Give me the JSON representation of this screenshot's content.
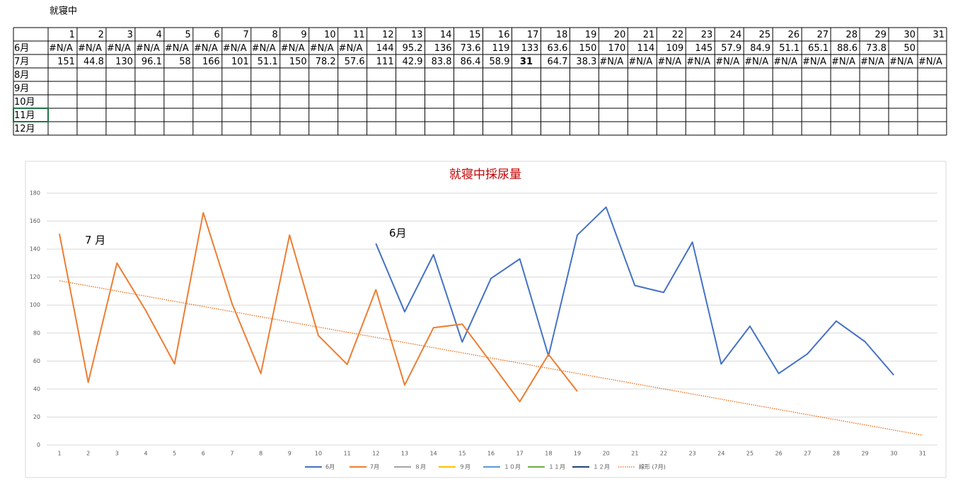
{
  "sheet_label": "就寝中",
  "table": {
    "columns": [
      1,
      2,
      3,
      4,
      5,
      6,
      7,
      8,
      9,
      10,
      11,
      12,
      13,
      14,
      15,
      16,
      17,
      18,
      19,
      20,
      21,
      22,
      23,
      24,
      25,
      26,
      27,
      28,
      29,
      30,
      31
    ],
    "rows": [
      {
        "label": "6月",
        "cells": [
          "#N/A",
          "#N/A",
          "#N/A",
          "#N/A",
          "#N/A",
          "#N/A",
          "#N/A",
          "#N/A",
          "#N/A",
          "#N/A",
          "#N/A",
          144,
          95.2,
          136,
          73.6,
          119,
          133,
          63.6,
          150,
          170,
          114,
          109,
          145,
          57.9,
          84.9,
          51.1,
          65.1,
          88.6,
          73.8,
          50
        ]
      },
      {
        "label": "7月",
        "cells": [
          151,
          44.8,
          130,
          96.1,
          58,
          166,
          101,
          51.1,
          150,
          78.2,
          57.6,
          111,
          42.9,
          83.8,
          86.4,
          58.9,
          31,
          64.7,
          38.3,
          "#N/A",
          "#N/A",
          "#N/A",
          "#N/A",
          "#N/A",
          "#N/A",
          "#N/A",
          "#N/A",
          "#N/A",
          "#N/A",
          "#N/A",
          "#N/A"
        ]
      },
      {
        "label": "8月",
        "cells": []
      },
      {
        "label": "9月",
        "cells": []
      },
      {
        "label": "10月",
        "cells": []
      },
      {
        "label": "11月",
        "cells": []
      },
      {
        "label": "12月",
        "cells": []
      }
    ],
    "emphasis": {
      "row": 1,
      "column": 16,
      "color": "#c00000"
    }
  },
  "chart_data": {
    "type": "line",
    "title": "就寝中採尿量",
    "annotations": [
      "7 月",
      "6月"
    ],
    "categories": [
      1,
      2,
      3,
      4,
      5,
      6,
      7,
      8,
      9,
      10,
      11,
      12,
      13,
      14,
      15,
      16,
      17,
      18,
      19,
      20,
      21,
      22,
      23,
      24,
      25,
      26,
      27,
      28,
      29,
      30,
      31
    ],
    "ylim": [
      0,
      180
    ],
    "yticks": [
      0,
      20,
      40,
      60,
      80,
      100,
      120,
      140,
      160,
      180
    ],
    "grid": true,
    "legend": "bottom",
    "series": [
      {
        "name": "6月",
        "color": "#4472c4",
        "values": [
          null,
          null,
          null,
          null,
          null,
          null,
          null,
          null,
          null,
          null,
          null,
          144,
          95.2,
          136,
          73.6,
          119,
          133,
          63.6,
          150,
          170,
          114,
          109,
          145,
          57.9,
          84.9,
          51.1,
          65.1,
          88.6,
          73.8,
          50,
          null
        ]
      },
      {
        "name": "7月",
        "color": "#ed7d31",
        "values": [
          151,
          44.8,
          130,
          96.1,
          58,
          166,
          101,
          51.1,
          150,
          78.2,
          57.6,
          111,
          42.9,
          83.8,
          86.4,
          58.9,
          31,
          64.7,
          38.3,
          null,
          null,
          null,
          null,
          null,
          null,
          null,
          null,
          null,
          null,
          null,
          null
        ]
      },
      {
        "name": "８月",
        "color": "#a5a5a5",
        "values": [
          null,
          null,
          null,
          null,
          null,
          null,
          null,
          null,
          null,
          null,
          null,
          null,
          null,
          null,
          null,
          null,
          null,
          null,
          null,
          null,
          null,
          null,
          null,
          null,
          null,
          null,
          null,
          null,
          null,
          null,
          null
        ]
      },
      {
        "name": "９月",
        "color": "#ffc000",
        "values": [
          null,
          null,
          null,
          null,
          null,
          null,
          null,
          null,
          null,
          null,
          null,
          null,
          null,
          null,
          null,
          null,
          null,
          null,
          null,
          null,
          null,
          null,
          null,
          null,
          null,
          null,
          null,
          null,
          null,
          null,
          null
        ]
      },
      {
        "name": "１０月",
        "color": "#5b9bd5",
        "values": [
          null,
          null,
          null,
          null,
          null,
          null,
          null,
          null,
          null,
          null,
          null,
          null,
          null,
          null,
          null,
          null,
          null,
          null,
          null,
          null,
          null,
          null,
          null,
          null,
          null,
          null,
          null,
          null,
          null,
          null,
          null
        ]
      },
      {
        "name": "１１月",
        "color": "#70ad47",
        "values": [
          null,
          null,
          null,
          null,
          null,
          null,
          null,
          null,
          null,
          null,
          null,
          null,
          null,
          null,
          null,
          null,
          null,
          null,
          null,
          null,
          null,
          null,
          null,
          null,
          null,
          null,
          null,
          null,
          null,
          null,
          null
        ]
      },
      {
        "name": "１２月",
        "color": "#264478",
        "values": [
          null,
          null,
          null,
          null,
          null,
          null,
          null,
          null,
          null,
          null,
          null,
          null,
          null,
          null,
          null,
          null,
          null,
          null,
          null,
          null,
          null,
          null,
          null,
          null,
          null,
          null,
          null,
          null,
          null,
          null,
          null
        ]
      }
    ],
    "trendline": {
      "name": "線形 (7月)",
      "color": "#ed7d31",
      "x": [
        1,
        31
      ],
      "values": [
        117.4,
        7
      ]
    }
  }
}
